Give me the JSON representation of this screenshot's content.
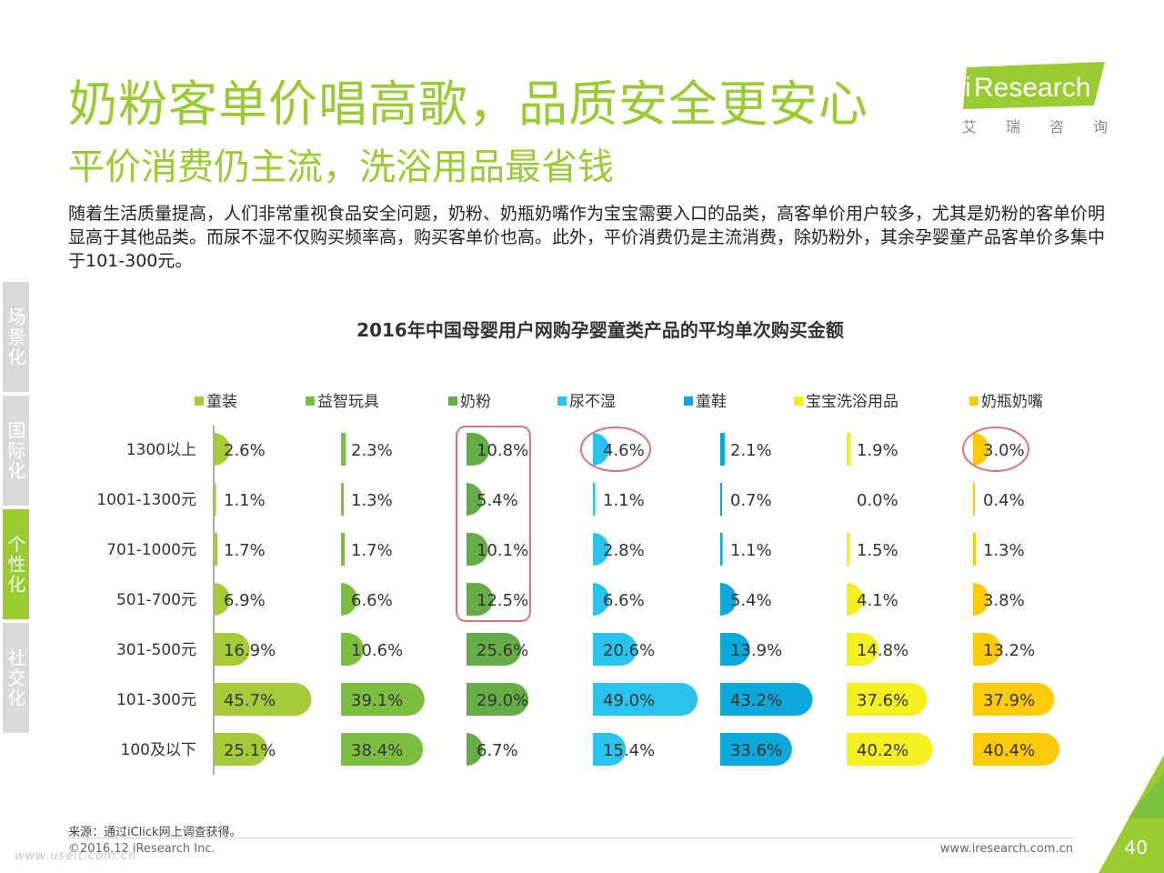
{
  "header": {
    "title": "奶粉客单价唱高歌，品质安全更安心",
    "subtitle": "平价消费仍主流，洗浴用品最省钱",
    "logo_text": "Research",
    "logo_i": "i",
    "logo_chars": [
      "艾",
      "瑞",
      "咨",
      "询"
    ],
    "brand_color": "#99cc33"
  },
  "intro": "随着生活质量提高，人们非常重视食品安全问题，奶粉、奶瓶奶嘴作为宝宝需要入口的品类，高客单价用户较多，尤其是奶粉的客单价明显高于其他品类。而尿不湿不仅购买频率高，购买客单价也高。此外，平价消费仍是主流消费，除奶粉外，其余孕婴童产品客单价多集中于101-300元。",
  "sidebar": {
    "tabs": [
      {
        "label": "场景化",
        "active": false
      },
      {
        "label": "国际化",
        "active": false
      },
      {
        "label": "个性化",
        "active": true
      },
      {
        "label": "社交化",
        "active": false
      }
    ]
  },
  "chart_data": {
    "type": "bar",
    "title": "2016年中国母婴用户网购孕婴童类产品的平均单次购买金额",
    "orientation": "horizontal",
    "unit": "%",
    "categories": [
      "1300以上",
      "1001-1300元",
      "701-1000元",
      "501-700元",
      "301-500元",
      "101-300元",
      "100及以下"
    ],
    "series": [
      {
        "name": "童装",
        "color": "#a5cb39",
        "values": [
          2.6,
          1.1,
          1.7,
          6.9,
          16.9,
          45.7,
          25.1
        ]
      },
      {
        "name": "益智玩具",
        "color": "#7cbf40",
        "values": [
          2.3,
          1.3,
          1.7,
          6.6,
          10.6,
          39.1,
          38.4
        ]
      },
      {
        "name": "奶粉",
        "color": "#65ad46",
        "values": [
          10.8,
          5.4,
          10.1,
          12.5,
          25.6,
          29.0,
          6.7
        ]
      },
      {
        "name": "尿不湿",
        "color": "#29c3ee",
        "values": [
          4.6,
          1.1,
          2.8,
          6.6,
          20.6,
          49.0,
          15.4
        ]
      },
      {
        "name": "童鞋",
        "color": "#0ca8db",
        "values": [
          2.1,
          0.7,
          1.1,
          5.4,
          13.9,
          43.2,
          33.6
        ]
      },
      {
        "name": "宝宝洗浴用品",
        "color": "#f6ef1f",
        "values": [
          1.9,
          0.0,
          1.5,
          4.1,
          14.8,
          37.6,
          40.2
        ]
      },
      {
        "name": "奶瓶奶嘴",
        "color": "#fbcb0a",
        "values": [
          3.0,
          0.4,
          1.3,
          3.8,
          13.2,
          37.9,
          40.4
        ]
      }
    ],
    "value_labels": [
      [
        "2.6%",
        "1.1%",
        "1.7%",
        "6.9%",
        "16.9%",
        "45.7%",
        "25.1%"
      ],
      [
        "2.3%",
        "1.3%",
        "1.7%",
        "6.6%",
        "10.6%",
        "39.1%",
        "38.4%"
      ],
      [
        "10.8%",
        "5.4%",
        "10.1%",
        "12.5%",
        "25.6%",
        "29.0%",
        "6.7%"
      ],
      [
        "4.6%",
        "1.1%",
        "2.8%",
        "6.6%",
        "20.6%",
        "49.0%",
        "15.4%"
      ],
      [
        "2.1%",
        "0.7%",
        "1.1%",
        "5.4%",
        "13.9%",
        "43.2%",
        "33.6%"
      ],
      [
        "1.9%",
        "0.0%",
        "1.5%",
        "4.1%",
        "14.8%",
        "37.6%",
        "40.2%"
      ],
      [
        "3.0%",
        "0.4%",
        "1.3%",
        "3.8%",
        "13.2%",
        "37.9%",
        "40.4%"
      ]
    ],
    "legend_position": "top",
    "grid": false,
    "highlight_color": "#e07080",
    "highlights": [
      {
        "shape": "rounded-rect",
        "series": "奶粉",
        "rows": [
          "1300以上",
          "1001-1300元",
          "701-1000元",
          "501-700元"
        ]
      },
      {
        "shape": "ellipse",
        "series": "尿不湿",
        "rows": [
          "1300以上"
        ]
      },
      {
        "shape": "ellipse",
        "series": "奶瓶奶嘴",
        "rows": [
          "1300以上"
        ]
      }
    ]
  },
  "footer": {
    "source": "来源：通过iClick网上调查获得。",
    "copyright": "©2016.12 iResearch Inc.",
    "website": "www.iresearch.com.cn",
    "page_number": "40",
    "watermark": "www.useit.com.cn"
  }
}
